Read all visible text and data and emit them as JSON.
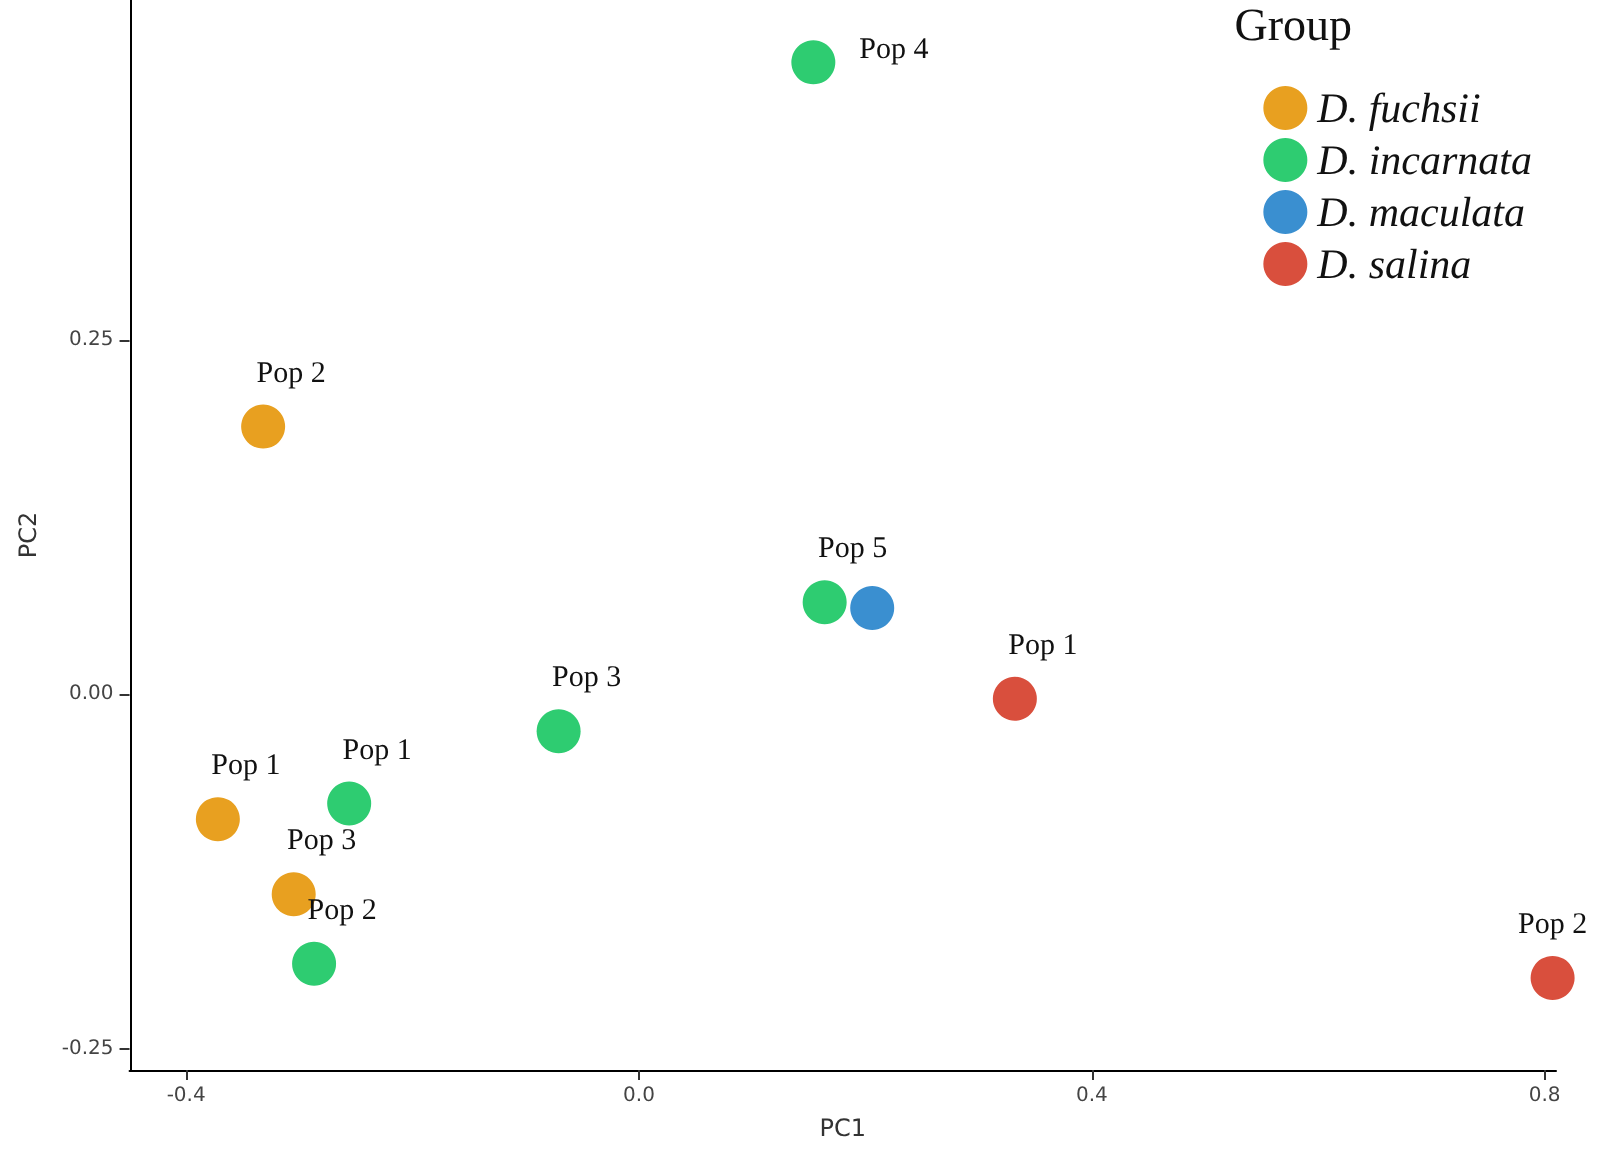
{
  "chart_data": {
    "type": "scatter",
    "xlabel": "PC1",
    "ylabel": "PC2",
    "legend_title": "Group",
    "legend": "top right",
    "grid": false,
    "marker": "circle",
    "xlim": [
      -0.45,
      0.81
    ],
    "xticks": [
      -0.4,
      {
        "value": 0,
        "label": "0.0"
      },
      0.4,
      0.8
    ],
    "ylim": [
      -0.265,
      0.49
    ],
    "yticks": [
      {
        "value": -0.25,
        "label": "-0.25"
      },
      {
        "value": 0,
        "label": "0.00"
      },
      {
        "value": 0.25,
        "label": "0.25"
      }
    ],
    "series": [
      {
        "name": "D. fuchsii",
        "color": "#e8a020",
        "x": [
          -0.332,
          -0.372,
          -0.305
        ],
        "values": [
          0.189,
          -0.088,
          -0.141
        ],
        "value_labels": [
          "Pop 2",
          "Pop 1",
          "Pop 3"
        ]
      },
      {
        "name": "D. incarnata",
        "color": "#2ecc71",
        "x": [
          0.154,
          0.164,
          -0.071,
          -0.256,
          -0.287
        ],
        "values": [
          0.446,
          0.065,
          -0.026,
          -0.077,
          -0.19
        ],
        "value_labels": [
          "Pop 4",
          "Pop 5",
          "Pop 3",
          "Pop 1",
          "Pop 2"
        ]
      },
      {
        "name": "D. maculata",
        "color": "#3a8fd0",
        "x": [
          0.206
        ],
        "values": [
          0.061
        ],
        "value_labels": [
          null
        ]
      },
      {
        "name": "D. salina",
        "color": "#d94f3d",
        "x": [
          0.332,
          0.807
        ],
        "values": [
          -0.003,
          -0.2
        ],
        "value_labels": [
          "Pop 1",
          "Pop 2"
        ]
      }
    ]
  }
}
